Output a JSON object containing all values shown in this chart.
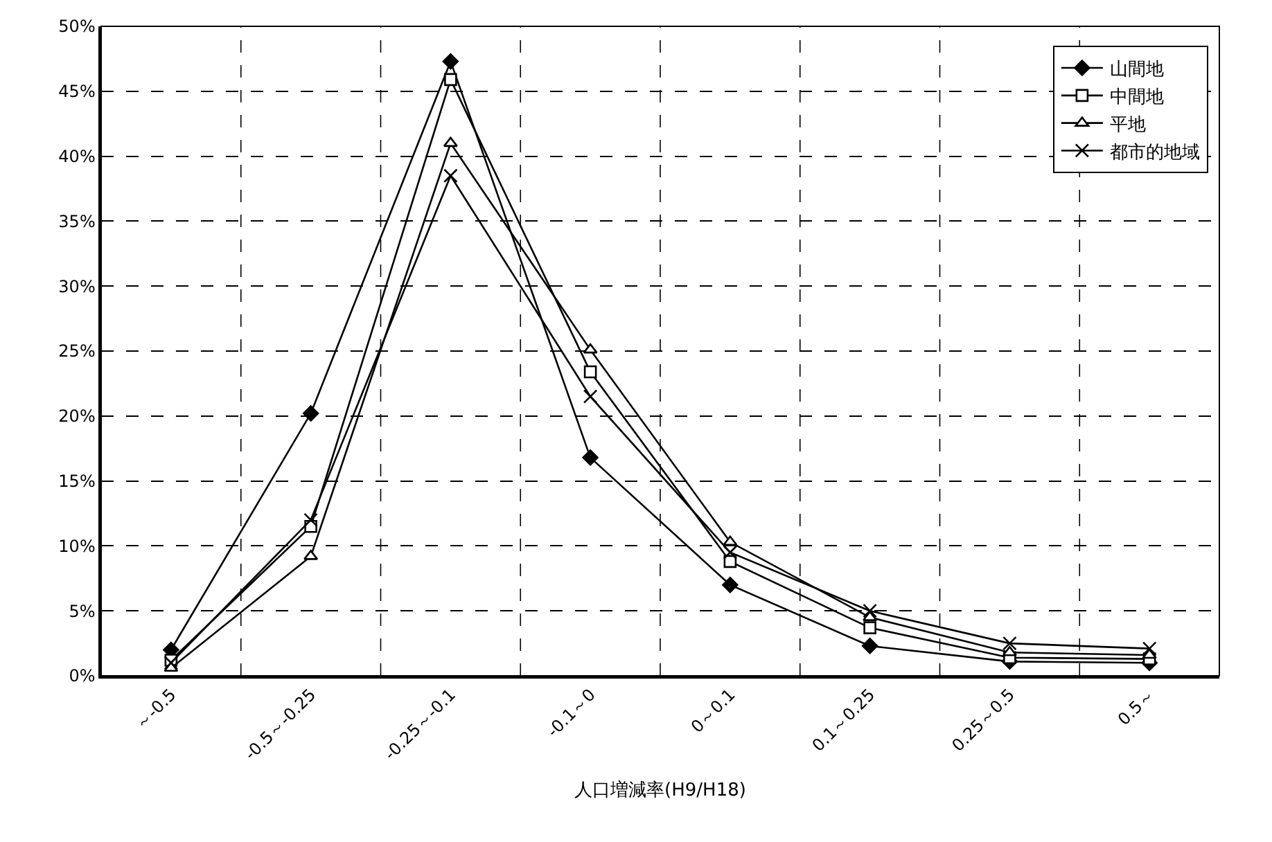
{
  "chart_data": {
    "type": "line",
    "xlabel": "人口増減率(H9/H18)",
    "categories": [
      "～-0.5",
      "-0.5～-0.25",
      "-0.25～-0.1",
      "-0.1～0",
      "0～0.1",
      "0.1～0.25",
      "0.25～0.5",
      "0.5～"
    ],
    "series": [
      {
        "name": "山間地",
        "color": "#000000",
        "marker": "diamond",
        "values": [
          2.0,
          20.2,
          47.3,
          16.8,
          7.0,
          2.3,
          1.1,
          1.0
        ]
      },
      {
        "name": "中間地",
        "color": "#000000",
        "marker": "square",
        "values": [
          1.2,
          11.5,
          45.9,
          23.4,
          8.8,
          3.7,
          1.4,
          1.3
        ]
      },
      {
        "name": "平地",
        "color": "#000000",
        "marker": "triangle",
        "values": [
          0.6,
          9.2,
          41.0,
          25.1,
          10.3,
          4.5,
          1.8,
          1.6
        ]
      },
      {
        "name": "都市的地域",
        "color": "#000000",
        "marker": "cross",
        "values": [
          1.0,
          12.0,
          38.5,
          21.5,
          9.5,
          5.0,
          2.5,
          2.1
        ]
      }
    ],
    "ylim": [
      0,
      50
    ],
    "yticks": [
      {
        "value": 0,
        "label": "0%"
      },
      {
        "value": 5,
        "label": "5%"
      },
      {
        "value": 10,
        "label": "10%"
      },
      {
        "value": 15,
        "label": "15%"
      },
      {
        "value": 20,
        "label": "20%"
      },
      {
        "value": 25,
        "label": "25%"
      },
      {
        "value": 30,
        "label": "30%"
      },
      {
        "value": 35,
        "label": "35%"
      },
      {
        "value": 40,
        "label": "40%"
      },
      {
        "value": 45,
        "label": "45%"
      },
      {
        "value": 50,
        "label": "50%"
      }
    ],
    "grid": true,
    "legend": "top right",
    "line_style": "solid"
  }
}
